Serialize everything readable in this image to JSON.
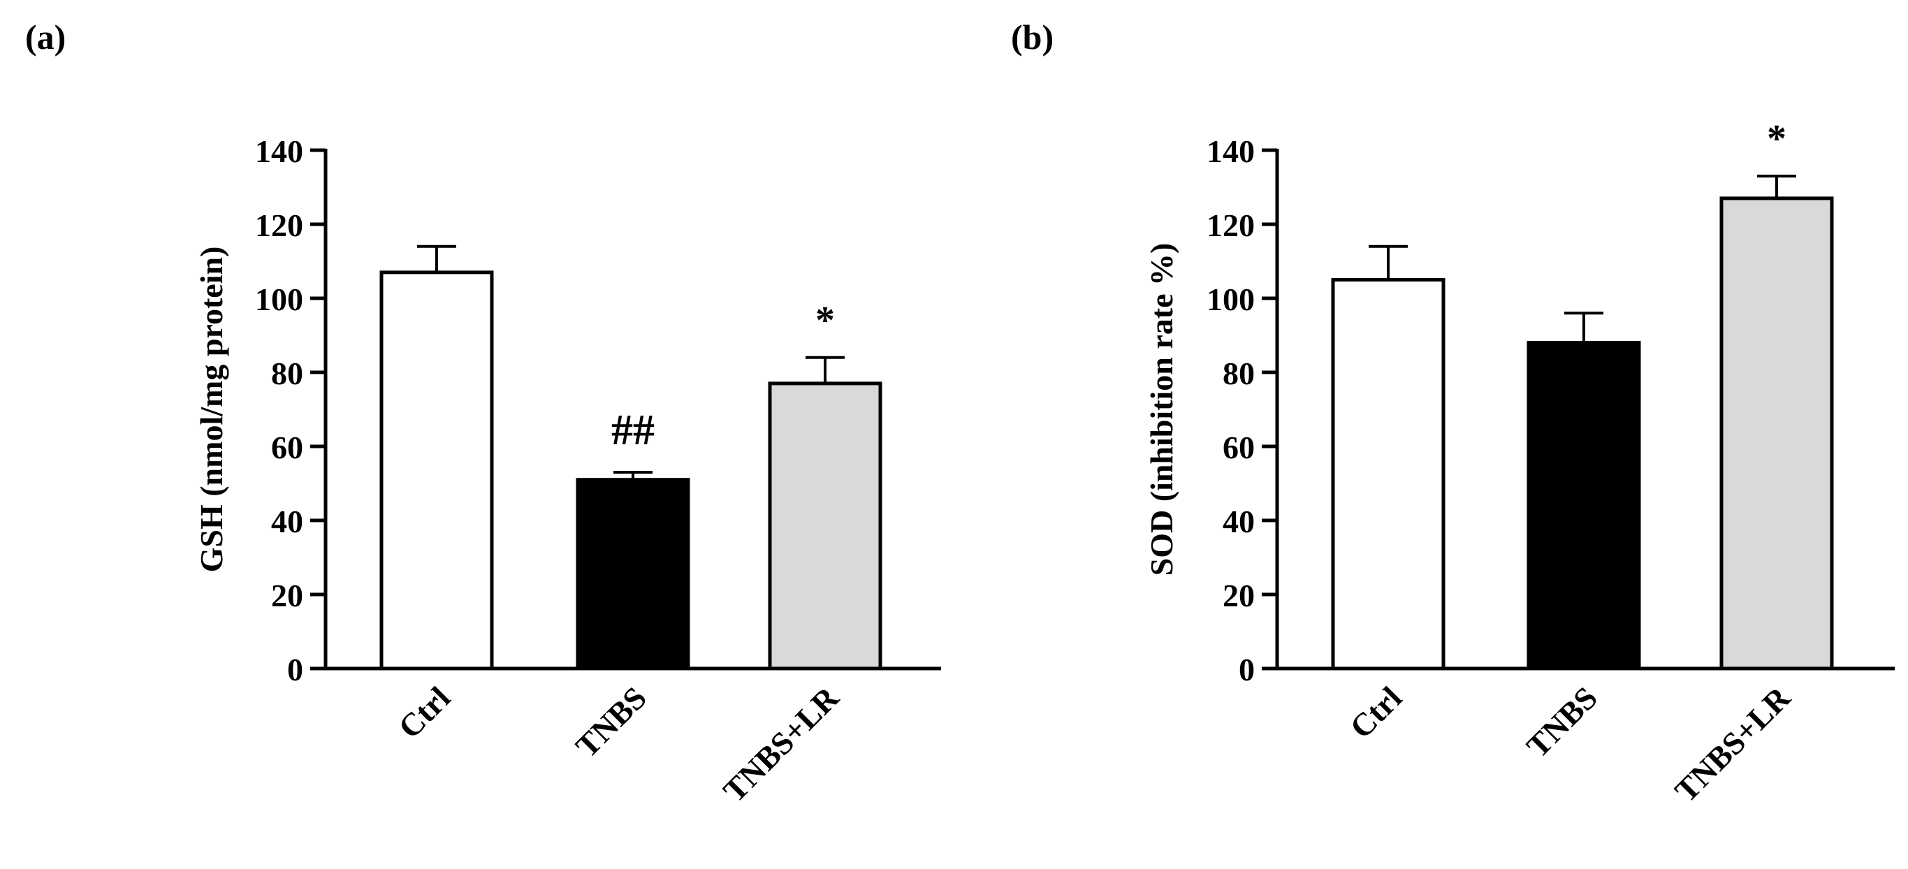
{
  "panels": [
    {
      "label": "(a)",
      "chart_data": {
        "type": "bar",
        "categories": [
          "Ctrl",
          "TNBS",
          "TNBS+LR"
        ],
        "values": [
          107,
          51,
          77
        ],
        "errors": [
          7,
          2,
          7
        ],
        "bar_colors": [
          "#ffffff",
          "#000000",
          "#d9d9d9"
        ],
        "significance": [
          "",
          "##",
          "*"
        ],
        "ylabel": "GSH (nmol/mg protein)",
        "xlabel": "",
        "ylim": [
          0,
          140
        ],
        "yticks": [
          0,
          20,
          40,
          60,
          80,
          100,
          120,
          140
        ],
        "grid": false,
        "legend": "none"
      }
    },
    {
      "label": "(b)",
      "chart_data": {
        "type": "bar",
        "categories": [
          "Ctrl",
          "TNBS",
          "TNBS+LR"
        ],
        "values": [
          105,
          88,
          127
        ],
        "errors": [
          9,
          8,
          6
        ],
        "bar_colors": [
          "#ffffff",
          "#000000",
          "#d9d9d9"
        ],
        "significance": [
          "",
          "",
          "*"
        ],
        "ylabel": "SOD (inhibition rate %)",
        "xlabel": "",
        "ylim": [
          0,
          140
        ],
        "yticks": [
          0,
          20,
          40,
          60,
          80,
          100,
          120,
          140
        ],
        "grid": false,
        "legend": "none"
      }
    }
  ]
}
